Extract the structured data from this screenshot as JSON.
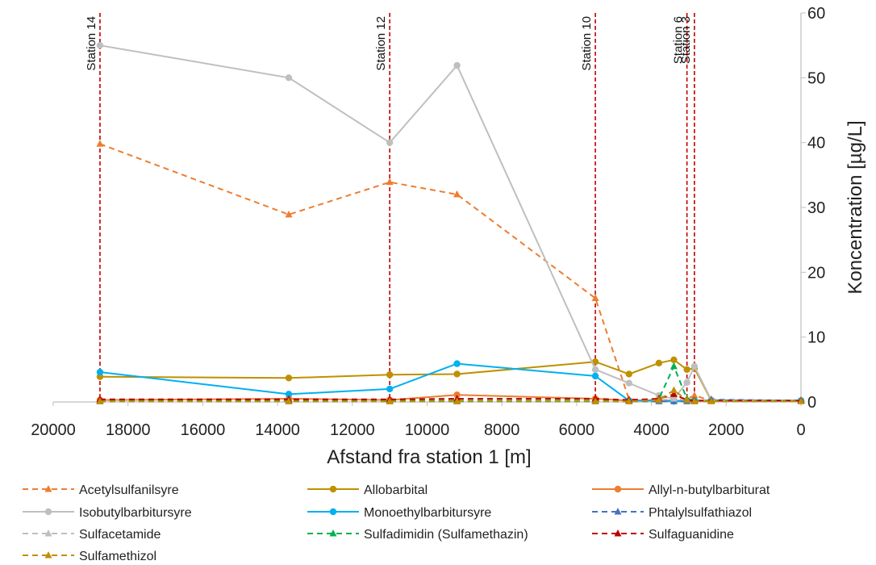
{
  "chart_data": {
    "type": "line",
    "title": "",
    "xlabel": "Afstand fra station 1 [m]",
    "ylabel": "Koncentration [µg/L]",
    "xlim": [
      20000,
      0
    ],
    "ylim": [
      0,
      60
    ],
    "x_ticks": [
      20000,
      18000,
      16000,
      14000,
      12000,
      10000,
      8000,
      6000,
      4000,
      2000,
      0
    ],
    "y_ticks": [
      0,
      10,
      20,
      30,
      40,
      50,
      60
    ],
    "y_axis_side": "right",
    "grid": false,
    "legend_position": "bottom",
    "stations": [
      {
        "label": "Station 14",
        "x": 18750
      },
      {
        "label": "Station 12",
        "x": 11000
      },
      {
        "label": "Station 10",
        "x": 5500
      },
      {
        "label": "Station 6",
        "x": 3050
      },
      {
        "label": "Station 3",
        "x": 2850
      }
    ],
    "series": [
      {
        "name": "Acetylsulfanilsyre",
        "color": "#ED7D31",
        "dash": true,
        "marker": "triangle",
        "points": [
          [
            18750,
            39.8
          ],
          [
            13700,
            28.9
          ],
          [
            11000,
            33.9
          ],
          [
            9200,
            32.0
          ],
          [
            5500,
            16.0
          ],
          [
            4600,
            0.4
          ],
          [
            3800,
            0.3
          ],
          [
            3400,
            0.3
          ],
          [
            3050,
            0.5
          ],
          [
            2850,
            1.0
          ],
          [
            2400,
            0.2
          ],
          [
            0,
            0.2
          ]
        ]
      },
      {
        "name": "Allobarbital",
        "color": "#BF9000",
        "dash": false,
        "marker": "circle",
        "points": [
          [
            18750,
            3.9
          ],
          [
            13700,
            3.7
          ],
          [
            11000,
            4.2
          ],
          [
            9200,
            4.3
          ],
          [
            5500,
            6.2
          ],
          [
            4600,
            4.3
          ],
          [
            3800,
            6.0
          ],
          [
            3400,
            6.5
          ],
          [
            3050,
            5.0
          ],
          [
            2850,
            5.2
          ],
          [
            2400,
            0.2
          ],
          [
            0,
            0.2
          ]
        ]
      },
      {
        "name": "Allyl-n-butylbarbiturat",
        "color": "#ED7D31",
        "dash": false,
        "marker": "circle",
        "points": [
          [
            18750,
            0.3
          ],
          [
            13700,
            0.5
          ],
          [
            11000,
            0.3
          ],
          [
            9200,
            1.1
          ],
          [
            5500,
            0.5
          ],
          [
            4600,
            0.2
          ],
          [
            3800,
            0.3
          ],
          [
            3400,
            0.2
          ],
          [
            3050,
            0.2
          ],
          [
            2850,
            0.2
          ],
          [
            2400,
            0.2
          ],
          [
            0,
            0.2
          ]
        ]
      },
      {
        "name": "Isobutylbarbitursyre",
        "color": "#BFBFBF",
        "dash": false,
        "marker": "circle",
        "points": [
          [
            18750,
            55.0
          ],
          [
            13700,
            50.0
          ],
          [
            11000,
            40.0
          ],
          [
            9200,
            51.9
          ],
          [
            5500,
            5.0
          ],
          [
            4600,
            2.9
          ],
          [
            3800,
            1.0
          ],
          [
            3400,
            0.5
          ],
          [
            3050,
            3.0
          ],
          [
            2850,
            5.5
          ],
          [
            2400,
            0.3
          ],
          [
            0,
            0.2
          ]
        ]
      },
      {
        "name": "Monoethylbarbitursyre",
        "color": "#00B0F0",
        "dash": false,
        "marker": "circle",
        "points": [
          [
            18750,
            4.6
          ],
          [
            13700,
            1.2
          ],
          [
            11000,
            2.0
          ],
          [
            9200,
            5.9
          ],
          [
            5500,
            4.0
          ],
          [
            4600,
            0.2
          ],
          [
            3800,
            0.2
          ],
          [
            3400,
            0.1
          ],
          [
            3050,
            0.2
          ],
          [
            2850,
            0.2
          ],
          [
            2400,
            0.2
          ],
          [
            0,
            0.2
          ]
        ]
      },
      {
        "name": "Phtalylsulfathiazol",
        "color": "#4472C4",
        "dash": true,
        "marker": "triangle",
        "points": [
          [
            18750,
            0.1
          ],
          [
            13700,
            0.1
          ],
          [
            11000,
            0.1
          ],
          [
            9200,
            0.1
          ],
          [
            5500,
            0.1
          ],
          [
            4600,
            0.1
          ],
          [
            3800,
            0.1
          ],
          [
            3400,
            0.1
          ],
          [
            3050,
            0.1
          ],
          [
            2850,
            0.1
          ],
          [
            2400,
            0.4
          ],
          [
            0,
            0.2
          ]
        ]
      },
      {
        "name": "Sulfacetamide",
        "color": "#BFBFBF",
        "dash": true,
        "marker": "triangle",
        "points": [
          [
            18750,
            0.2
          ],
          [
            13700,
            0.2
          ],
          [
            11000,
            0.2
          ],
          [
            9200,
            0.2
          ],
          [
            5500,
            0.2
          ],
          [
            4600,
            0.2
          ],
          [
            3800,
            0.3
          ],
          [
            3400,
            0.5
          ],
          [
            3050,
            0.3
          ],
          [
            2850,
            0.2
          ],
          [
            2400,
            0.3
          ],
          [
            0,
            0.2
          ]
        ]
      },
      {
        "name": "Sulfadimidin (Sulfamethazin)",
        "color": "#00B050",
        "dash": true,
        "marker": "triangle",
        "points": [
          [
            18750,
            0.2
          ],
          [
            13700,
            0.2
          ],
          [
            11000,
            0.2
          ],
          [
            9200,
            0.2
          ],
          [
            5500,
            0.2
          ],
          [
            4600,
            0.2
          ],
          [
            3800,
            0.5
          ],
          [
            3400,
            5.5
          ],
          [
            3050,
            0.5
          ],
          [
            2850,
            0.2
          ],
          [
            2400,
            0.2
          ],
          [
            0,
            0.2
          ]
        ]
      },
      {
        "name": "Sulfaguanidine",
        "color": "#C00000",
        "dash": true,
        "marker": "triangle",
        "points": [
          [
            18750,
            0.4
          ],
          [
            13700,
            0.4
          ],
          [
            11000,
            0.4
          ],
          [
            9200,
            0.5
          ],
          [
            5500,
            0.5
          ],
          [
            4600,
            0.3
          ],
          [
            3800,
            0.5
          ],
          [
            3400,
            1.2
          ],
          [
            3050,
            0.3
          ],
          [
            2850,
            0.2
          ],
          [
            2400,
            0.2
          ],
          [
            0,
            0.2
          ]
        ]
      },
      {
        "name": "Sulfamethizol",
        "color": "#BF9000",
        "dash": true,
        "marker": "triangle",
        "points": [
          [
            18750,
            0.1
          ],
          [
            13700,
            0.1
          ],
          [
            11000,
            0.1
          ],
          [
            9200,
            0.1
          ],
          [
            5500,
            0.1
          ],
          [
            4600,
            0.1
          ],
          [
            3800,
            0.3
          ],
          [
            3400,
            1.8
          ],
          [
            3050,
            0.3
          ],
          [
            2850,
            0.1
          ],
          [
            2400,
            0.1
          ],
          [
            0,
            0.1
          ]
        ]
      }
    ]
  }
}
